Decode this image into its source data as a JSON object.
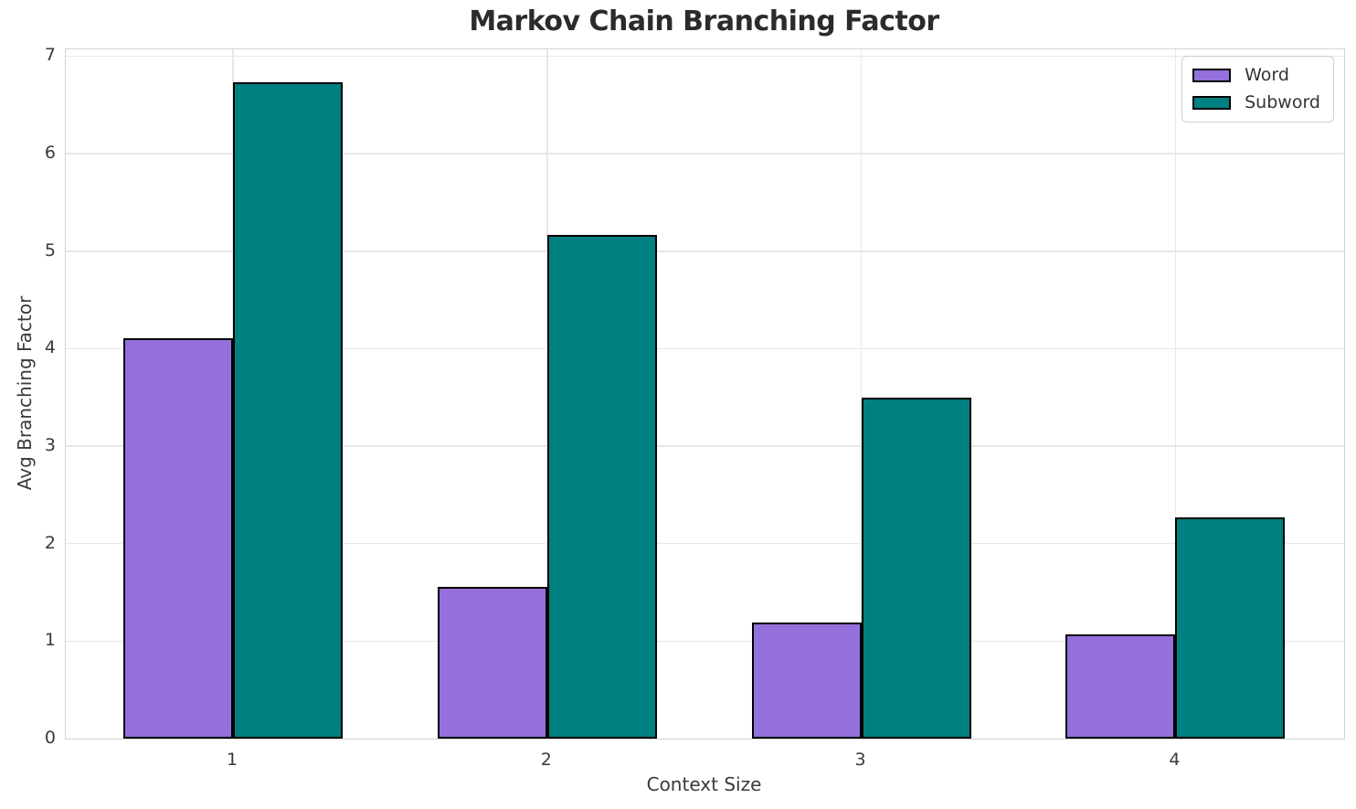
{
  "chart_data": {
    "type": "bar",
    "title": "Markov Chain Branching Factor",
    "xlabel": "Context Size",
    "ylabel": "Avg Branching Factor",
    "categories": [
      "1",
      "2",
      "3",
      "4"
    ],
    "series": [
      {
        "name": "Word",
        "color": "#9370DB",
        "values": [
          4.11,
          1.56,
          1.19,
          1.07
        ]
      },
      {
        "name": "Subword",
        "color": "#008080",
        "values": [
          6.73,
          5.17,
          3.5,
          2.27
        ]
      }
    ],
    "ylim": [
      0,
      7.07
    ],
    "yticks": [
      0,
      1,
      2,
      3,
      4,
      5,
      6,
      7
    ],
    "grid": true,
    "legend_position": "upper right",
    "bar_edge_color": "#000000",
    "bar_width_fraction": 0.35,
    "styles": {
      "grid_color": "#e8e8e8",
      "spine_color": "#d3d3d3",
      "text_color": "#3a3a3a",
      "title_color": "#2b2b2b"
    }
  }
}
